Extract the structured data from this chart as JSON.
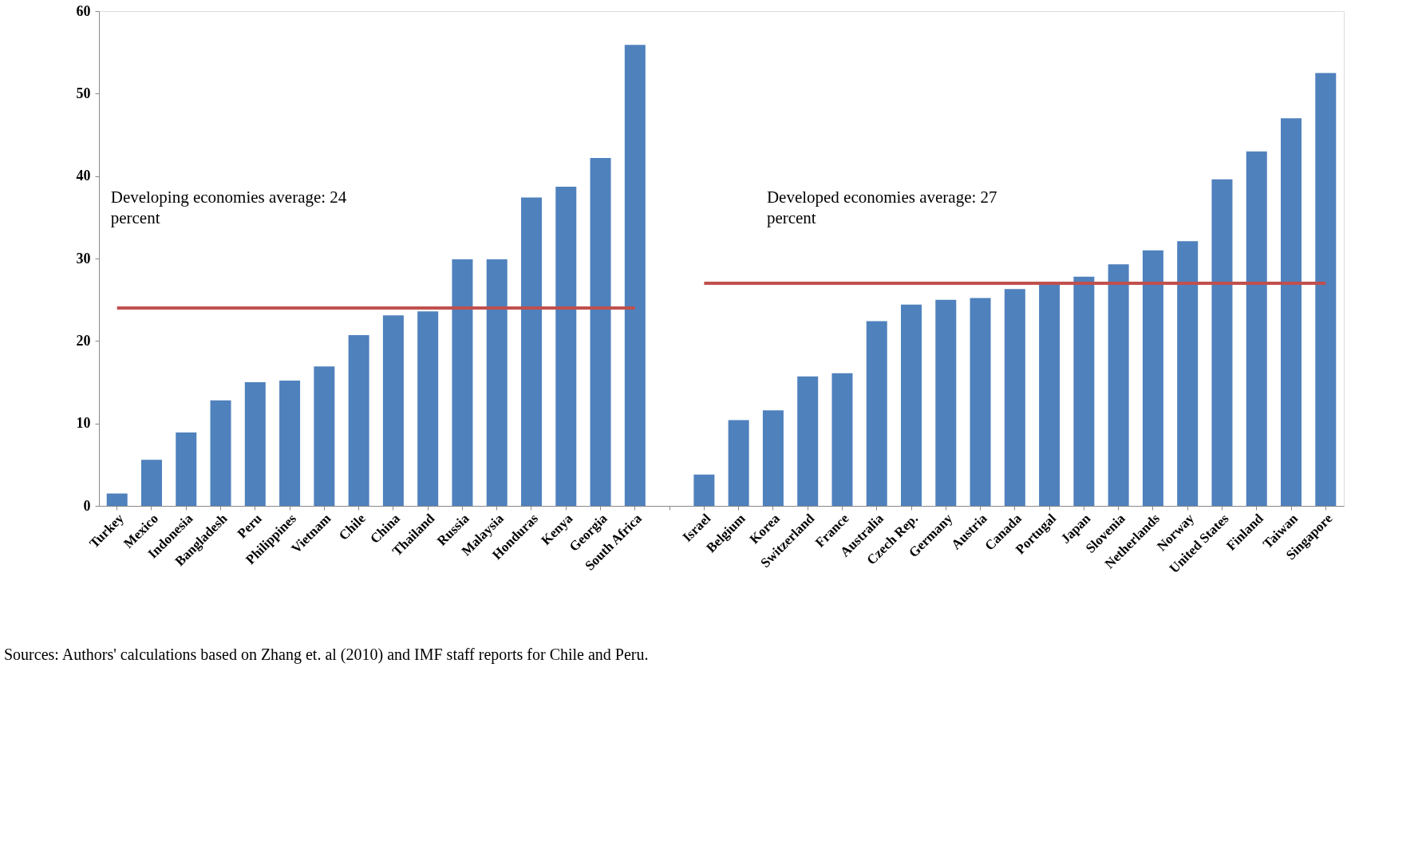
{
  "chart_data": {
    "type": "bar",
    "categories": [
      "Turkey",
      "Mexico",
      "Indonesia",
      "Bangladesh",
      "Peru",
      "Philippines",
      "Vietnam",
      "Chile",
      "China",
      "Thailand",
      "Russia",
      "Malaysia",
      "Honduras",
      "Kenya",
      "Georgia",
      "South Africa",
      null,
      "Israel",
      "Belgium",
      "Korea",
      "Switzerland",
      "France",
      "Australia",
      "Czech Rep.",
      "Germany",
      "Austria",
      "Canada",
      "Portugal",
      "Japan",
      "Slovenia",
      "Netherlands",
      "Norway",
      "United States",
      "Finland",
      "Taiwan",
      "Singapore"
    ],
    "series": [
      {
        "color": "#4f81bd",
        "values": [
          1.5,
          5.6,
          8.9,
          12.8,
          15.0,
          15.2,
          16.9,
          20.7,
          23.1,
          23.6,
          29.9,
          29.9,
          37.4,
          38.7,
          42.2,
          55.9,
          null,
          3.8,
          10.4,
          11.6,
          15.7,
          16.1,
          22.4,
          24.4,
          25.0,
          25.2,
          26.3,
          26.8,
          27.8,
          29.3,
          31.0,
          32.1,
          39.6,
          43.0,
          47.0,
          52.5
        ]
      },
      {
        "type": "line",
        "color": "#c0504d",
        "values": [
          24,
          24,
          24,
          24,
          24,
          24,
          24,
          24,
          24,
          24,
          24,
          24,
          24,
          24,
          24,
          24,
          null,
          null,
          null,
          null,
          null,
          null,
          null,
          null,
          null,
          null,
          null,
          null,
          null,
          null,
          null,
          null,
          null,
          null,
          null,
          null
        ]
      },
      {
        "type": "line",
        "color": "#c0504d",
        "values": [
          null,
          null,
          null,
          null,
          null,
          null,
          null,
          null,
          null,
          null,
          null,
          null,
          null,
          null,
          null,
          null,
          null,
          27,
          27,
          27,
          27,
          27,
          27,
          27,
          27,
          27,
          27,
          27,
          27,
          27,
          27,
          27,
          27,
          27,
          27,
          27
        ]
      }
    ],
    "ylim": [
      0,
      60
    ],
    "yticks": [
      0,
      10,
      20,
      30,
      40,
      50,
      60
    ],
    "grid": false,
    "annotations": [
      "Developing economies average: 24\npercent",
      "Developed  economies average: 27\npercent",
      "Sources: Authors' calculations based on Zhang et. al (2010) and  IMF staff reports for Chile and Peru."
    ]
  }
}
